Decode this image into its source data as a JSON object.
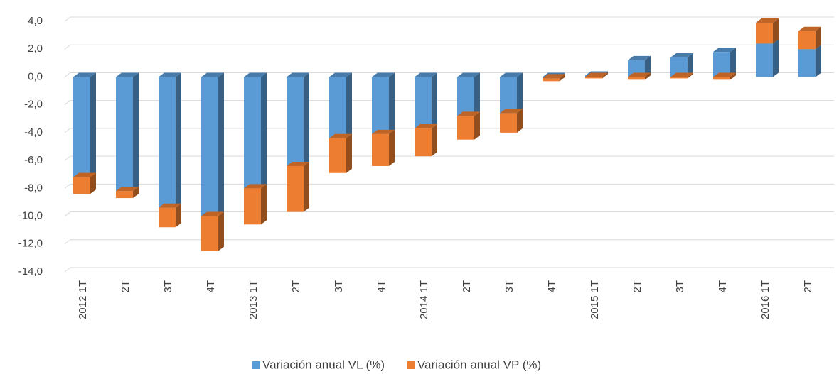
{
  "chart_data": {
    "type": "bar",
    "stacked": true,
    "categories": [
      "2012 1T",
      "2T",
      "3T",
      "4T",
      "2013 1T",
      "2T",
      "3T",
      "4T",
      "2014 1T",
      "2T",
      "3T",
      "4T",
      "2015 1T",
      "2T",
      "3T",
      "4T",
      "2016 1T",
      "2T"
    ],
    "series": [
      {
        "name": "Variación anual VL (%)",
        "color": "#5b9bd5",
        "values": [
          -7.2,
          -8.2,
          -9.4,
          -10.0,
          -8.0,
          -6.4,
          -4.4,
          -4.1,
          -3.7,
          -2.8,
          -2.6,
          -0.1,
          0.1,
          1.2,
          1.4,
          1.8,
          2.4,
          2.0
        ]
      },
      {
        "name": "Variación anual VP (%)",
        "color": "#ed7d31",
        "values": [
          -1.2,
          -0.5,
          -1.4,
          -2.5,
          -2.6,
          -3.3,
          -2.5,
          -2.3,
          -2.0,
          -1.7,
          -1.4,
          -0.2,
          -0.1,
          -0.2,
          -0.1,
          -0.2,
          1.5,
          1.3
        ]
      }
    ],
    "ylim": [
      -14,
      4
    ],
    "yticks": [
      {
        "value": -14,
        "label": "-14,0"
      },
      {
        "value": -12,
        "label": "-12,0"
      },
      {
        "value": -10,
        "label": "-10,0"
      },
      {
        "value": -8,
        "label": "-8,0"
      },
      {
        "value": -6,
        "label": "-6,0"
      },
      {
        "value": -4,
        "label": "-4,0"
      },
      {
        "value": -2,
        "label": "-2,0"
      },
      {
        "value": 0,
        "label": "0,0"
      },
      {
        "value": 2,
        "label": "2,0"
      },
      {
        "value": 4,
        "label": "4,0"
      }
    ],
    "grid": true,
    "legend": "bottom"
  }
}
